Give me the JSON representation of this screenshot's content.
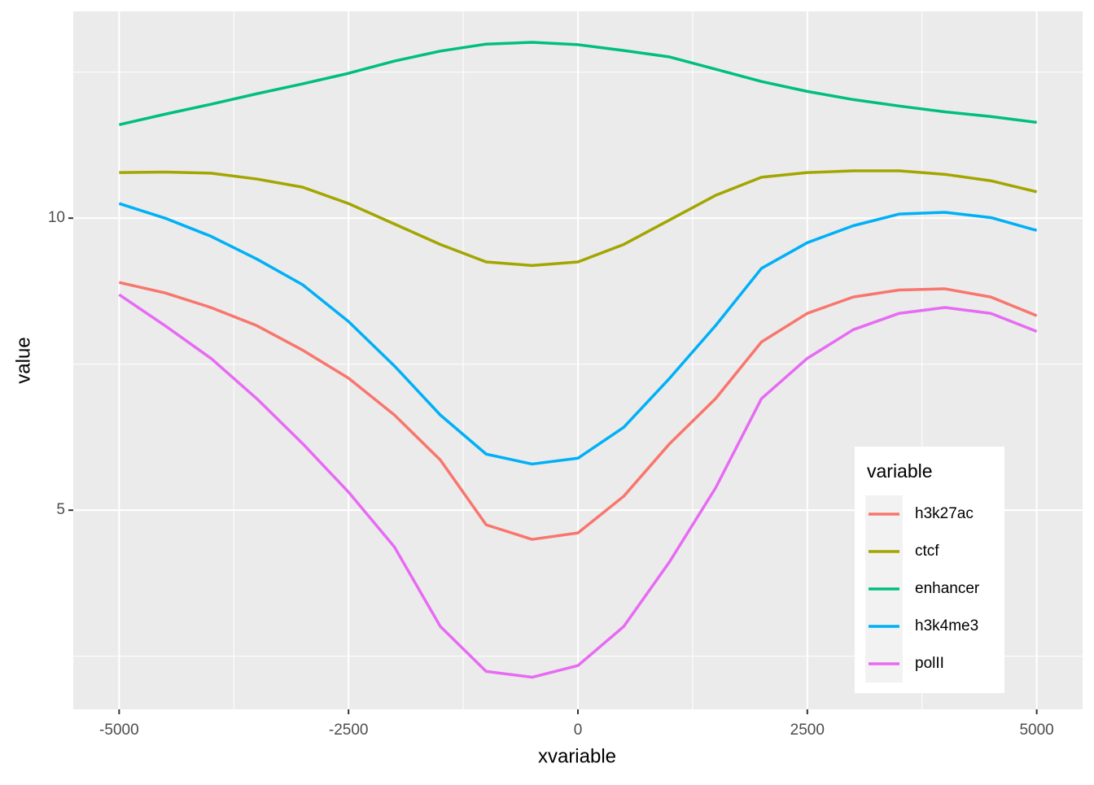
{
  "chart_data": {
    "type": "line",
    "x_label": "xvariable",
    "y_label": "value",
    "x": [
      -5000,
      -4500,
      -4000,
      -3500,
      -3000,
      -2500,
      -2000,
      -1500,
      -1000,
      -500,
      0,
      500,
      1000,
      1500,
      2000,
      2500,
      3000,
      3500,
      4000,
      4500,
      5000
    ],
    "series": [
      {
        "name": "h3k27ac",
        "color": "#F8766D",
        "values": [
          8.9,
          8.72,
          8.47,
          8.16,
          7.74,
          7.26,
          6.63,
          5.86,
          4.75,
          4.5,
          4.61,
          5.24,
          6.14,
          6.91,
          7.88,
          8.37,
          8.65,
          8.77,
          8.79,
          8.65,
          8.33
        ]
      },
      {
        "name": "ctcf",
        "color": "#A3A500",
        "values": [
          10.78,
          10.79,
          10.77,
          10.67,
          10.53,
          10.25,
          9.9,
          9.55,
          9.25,
          9.19,
          9.25,
          9.55,
          9.97,
          10.39,
          10.7,
          10.78,
          10.81,
          10.81,
          10.75,
          10.64,
          10.45
        ]
      },
      {
        "name": "enhancer",
        "color": "#00BF7D",
        "values": [
          11.6,
          11.78,
          11.95,
          12.13,
          12.3,
          12.48,
          12.69,
          12.86,
          12.98,
          13.01,
          12.97,
          12.87,
          12.76,
          12.55,
          12.34,
          12.17,
          12.03,
          11.92,
          11.82,
          11.74,
          11.64
        ]
      },
      {
        "name": "h3k4me3",
        "color": "#00B0F6",
        "values": [
          10.25,
          10.0,
          9.69,
          9.3,
          8.86,
          8.23,
          7.47,
          6.63,
          5.96,
          5.79,
          5.89,
          6.42,
          7.26,
          8.16,
          9.14,
          9.58,
          9.87,
          10.07,
          10.1,
          10.01,
          9.79
        ]
      },
      {
        "name": "polII",
        "color": "#E76BF3",
        "values": [
          8.69,
          8.16,
          7.6,
          6.91,
          6.14,
          5.31,
          4.37,
          3.01,
          2.24,
          2.14,
          2.34,
          3.01,
          4.12,
          5.38,
          6.91,
          7.6,
          8.09,
          8.37,
          8.47,
          8.37,
          8.06
        ]
      }
    ],
    "xlim": [
      -5500,
      5500
    ],
    "ylim": [
      1.59,
      13.54
    ],
    "xticks": [
      -5000,
      -2500,
      0,
      2500,
      5000
    ],
    "yticks": [
      5,
      10
    ],
    "xminor": [
      -3750,
      -1250,
      1250,
      3750
    ],
    "yminor": [
      2.5,
      7.5,
      12.5
    ],
    "legend_title": "variable",
    "legend_position": "bottom-right",
    "grid": true
  }
}
